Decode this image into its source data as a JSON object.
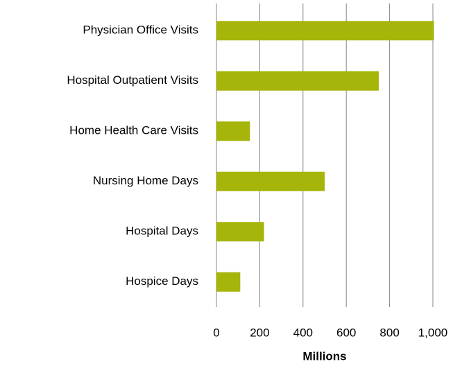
{
  "chart_data": {
    "type": "hbar",
    "x_label": "Millions",
    "categories": [
      "Physician Office Visits",
      "Hospital Outpatient Visits",
      "Home Health Care Visits",
      "Nursing Home Days",
      "Hospital Days",
      "Hospice Days"
    ],
    "values": [
      1005,
      750,
      155,
      500,
      220,
      110
    ],
    "color": "#a5b50a",
    "xlim": [
      0,
      1000
    ],
    "xticks": [
      0,
      200,
      400,
      600,
      800,
      {
        "value": 1000,
        "label": "1,000"
      }
    ],
    "grid": true
  }
}
